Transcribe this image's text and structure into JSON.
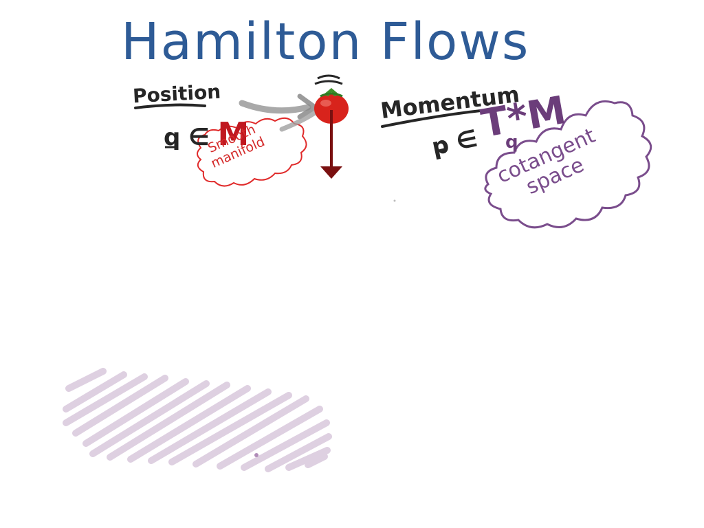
{
  "title": "Hamilton Flows",
  "position": {
    "label": "Position",
    "expression": "q ∈ ",
    "space_symbol": "M",
    "note_line1": "Smooth",
    "note_line2": "manifold"
  },
  "momentum": {
    "label": "Momentum",
    "expression": "p ∈ ",
    "space_symbol": "T*M",
    "subscript": "q",
    "note_line1": "cotangent",
    "note_line2": "space"
  },
  "colors": {
    "title": "#2e5b96",
    "ink_dark": "#262626",
    "red_note": "#d42a2a",
    "purple_note": "#7a4d8c",
    "tomato": "#d8231c",
    "force_arrow": "#7a1010",
    "scribble": "#d9c8dc"
  },
  "icons": {
    "tomato": "tomato-icon",
    "arrow_to_tomato": "gray-arrow-icon",
    "gravity_arrow": "down-arrow-icon"
  }
}
